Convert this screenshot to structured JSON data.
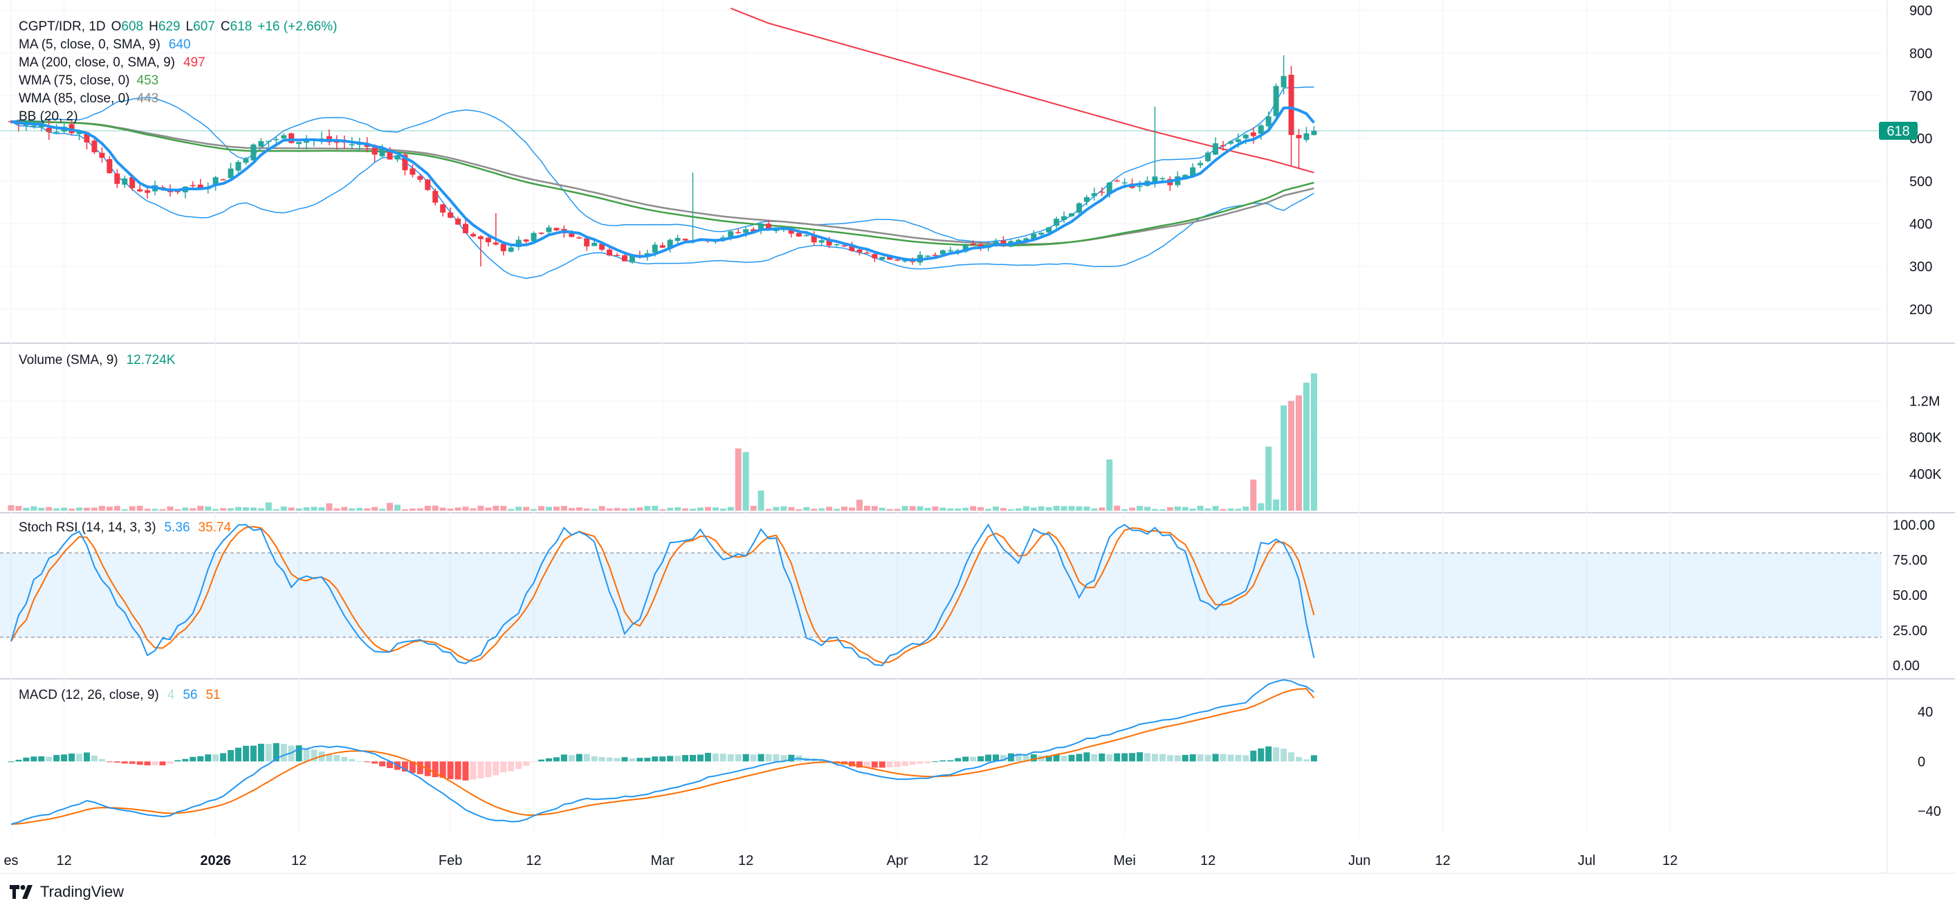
{
  "brand": {
    "name": "TradingView",
    "logo_icon": "tradingview-logo-icon"
  },
  "colors": {
    "up": "#26a69a",
    "up_vol": "#86dccf",
    "down": "#f23645",
    "down_vol": "#f7a1ab",
    "ma5": "#2196f3",
    "ma200": "#f23645",
    "wma75": "#43a047",
    "wma85": "#8d8d8d",
    "bb": "#2196f3",
    "stoch_k": "#2196f3",
    "stoch_d": "#ff6d00",
    "macd": "#2196f3",
    "signal": "#ff6d00",
    "hist_up_strong": "#26a69a",
    "hist_up_weak": "#b2dfdb",
    "hist_dn_strong": "#ff5252",
    "hist_dn_weak": "#ffcdd2",
    "label_green": "#089981",
    "label_blue": "#2196f3",
    "label_red": "#f23645",
    "label_orange": "#ff6d00",
    "label_gray": "#8d8d8d"
  },
  "legend": {
    "symbol": "CGPT/IDR, 1D",
    "o_label": "O",
    "o": "608",
    "h_label": "H",
    "h": "629",
    "l_label": "L",
    "l": "607",
    "c_label": "C",
    "c": "618",
    "change": "+16 (+2.66%)",
    "ma5": "MA (5, close, 0, SMA, 9)",
    "ma5_val": "640",
    "ma200": "MA (200, close, 0, SMA, 9)",
    "ma200_val": "497",
    "wma75": "WMA (75, close, 0)",
    "wma75_val": "453",
    "wma85": "WMA (85, close, 0)",
    "wma85_val": "443",
    "bb": "BB (20, 2)"
  },
  "price_badge": "618",
  "volume_legend": {
    "name": "Volume (SMA, 9)",
    "value": "12.724K"
  },
  "stoch_legend": {
    "name": "Stoch RSI (14, 14, 3, 3)",
    "k": "5.36",
    "d": "35.74"
  },
  "macd_legend": {
    "name": "MACD (12, 26, close, 9)",
    "hist": "4",
    "macd": "56",
    "signal": "51"
  },
  "chart_data": {
    "type": "candlestick",
    "symbol": "CGPT/IDR",
    "timeframe": "1D",
    "last": {
      "open": 608,
      "high": 629,
      "low": 607,
      "close": 618,
      "change": 16,
      "change_pct": 2.66
    },
    "x_ticks": [
      {
        "label": "es",
        "day": 0
      },
      {
        "label": "12",
        "day": 7
      },
      {
        "label": "2026",
        "day": 27,
        "bold": true
      },
      {
        "label": "12",
        "day": 38
      },
      {
        "label": "Feb",
        "day": 58
      },
      {
        "label": "12",
        "day": 69
      },
      {
        "label": "Mar",
        "day": 86
      },
      {
        "label": "12",
        "day": 97
      },
      {
        "label": "Apr",
        "day": 117
      },
      {
        "label": "12",
        "day": 128
      },
      {
        "label": "Mei",
        "day": 147
      },
      {
        "label": "12",
        "day": 158
      },
      {
        "label": "Jun",
        "day": 178
      },
      {
        "label": "12",
        "day": 189
      },
      {
        "label": "Jul",
        "day": 208
      },
      {
        "label": "12",
        "day": 219
      }
    ],
    "x_range": [
      0,
      234
    ],
    "panes": {
      "price": {
        "y_ticks": [
          900,
          800,
          700,
          600,
          500,
          400,
          300,
          200
        ],
        "ylim": [
          125,
          905
        ]
      },
      "volume": {
        "y_ticks": [
          {
            "v": 1200000,
            "label": "1.2M"
          },
          {
            "v": 800000,
            "label": "800K"
          },
          {
            "v": 400000,
            "label": "400K"
          }
        ],
        "ylim": [
          0,
          1800000
        ]
      },
      "stoch": {
        "y_ticks": [
          "100.00",
          "75.00",
          "50.00",
          "25.00",
          "0.00"
        ],
        "ylim": [
          -8,
          108
        ],
        "band": [
          20,
          80
        ]
      },
      "macd": {
        "y_ticks": [
          40,
          0,
          -40
        ],
        "ylim": [
          -60,
          66
        ]
      }
    },
    "price_knots": [
      [
        0,
        640
      ],
      [
        3,
        625
      ],
      [
        5,
        625
      ],
      [
        7,
        630
      ],
      [
        9,
        615
      ],
      [
        11,
        575
      ],
      [
        14,
        505
      ],
      [
        16,
        485
      ],
      [
        18,
        478
      ],
      [
        20,
        482
      ],
      [
        22,
        480
      ],
      [
        24,
        490
      ],
      [
        26,
        498
      ],
      [
        28,
        512
      ],
      [
        30,
        545
      ],
      [
        31,
        565
      ],
      [
        33,
        590
      ],
      [
        35,
        600
      ],
      [
        37,
        602
      ],
      [
        39,
        600
      ],
      [
        41,
        595
      ],
      [
        43,
        590
      ],
      [
        45,
        588
      ],
      [
        47,
        580
      ],
      [
        49,
        570
      ],
      [
        51,
        548
      ],
      [
        53,
        520
      ],
      [
        55,
        470
      ],
      [
        57,
        430
      ],
      [
        59,
        400
      ],
      [
        61,
        370
      ],
      [
        63,
        350
      ],
      [
        65,
        342
      ],
      [
        67,
        355
      ],
      [
        69,
        370
      ],
      [
        71,
        385
      ],
      [
        73,
        380
      ],
      [
        75,
        360
      ],
      [
        77,
        350
      ],
      [
        79,
        330
      ],
      [
        81,
        320
      ],
      [
        83,
        328
      ],
      [
        85,
        345
      ],
      [
        87,
        360
      ],
      [
        89,
        370
      ],
      [
        91,
        365
      ],
      [
        93,
        368
      ],
      [
        95,
        375
      ],
      [
        97,
        385
      ],
      [
        99,
        395
      ],
      [
        101,
        390
      ],
      [
        103,
        378
      ],
      [
        105,
        365
      ],
      [
        107,
        355
      ],
      [
        109,
        355
      ],
      [
        111,
        345
      ],
      [
        113,
        330
      ],
      [
        115,
        320
      ],
      [
        117,
        318
      ],
      [
        119,
        318
      ],
      [
        121,
        322
      ],
      [
        123,
        330
      ],
      [
        125,
        340
      ],
      [
        127,
        345
      ],
      [
        129,
        350
      ],
      [
        131,
        355
      ],
      [
        133,
        365
      ],
      [
        135,
        380
      ],
      [
        137,
        395
      ],
      [
        139,
        415
      ],
      [
        141,
        445
      ],
      [
        143,
        470
      ],
      [
        145,
        485
      ],
      [
        147,
        490
      ],
      [
        149,
        498
      ],
      [
        151,
        505
      ],
      [
        153,
        500
      ],
      [
        155,
        520
      ],
      [
        157,
        550
      ],
      [
        159,
        575
      ],
      [
        161,
        595
      ],
      [
        163,
        600
      ],
      [
        165,
        625
      ],
      [
        167,
        710
      ],
      [
        168,
        760
      ],
      [
        169,
        600
      ],
      [
        170,
        590
      ],
      [
        171,
        610
      ],
      [
        172,
        618
      ]
    ],
    "ma200_knots": [
      [
        95,
        905
      ],
      [
        100,
        870
      ],
      [
        110,
        820
      ],
      [
        120,
        770
      ],
      [
        130,
        720
      ],
      [
        140,
        670
      ],
      [
        150,
        620
      ],
      [
        160,
        575
      ],
      [
        166,
        550
      ],
      [
        172,
        520
      ],
      [
        178,
        505
      ],
      [
        184,
        497
      ]
    ],
    "volume_spikes": [
      [
        0,
        60000
      ],
      [
        34,
        90000
      ],
      [
        42,
        80000
      ],
      [
        44,
        40000
      ],
      [
        50,
        85000
      ],
      [
        51,
        65000
      ],
      [
        56,
        55000
      ],
      [
        96,
        680000
      ],
      [
        97,
        640000
      ],
      [
        99,
        220000
      ],
      [
        112,
        120000
      ],
      [
        145,
        560000
      ],
      [
        163,
        45000
      ],
      [
        164,
        340000
      ],
      [
        166,
        700000
      ],
      [
        168,
        1150000
      ],
      [
        169,
        1200000
      ],
      [
        170,
        1260000
      ],
      [
        171,
        1400000
      ],
      [
        172,
        1500000
      ]
    ],
    "stoch_knots": [
      [
        0,
        20
      ],
      [
        3,
        60
      ],
      [
        6,
        80
      ],
      [
        9,
        95
      ],
      [
        12,
        60
      ],
      [
        15,
        35
      ],
      [
        18,
        10
      ],
      [
        21,
        20
      ],
      [
        24,
        40
      ],
      [
        27,
        80
      ],
      [
        29,
        95
      ],
      [
        31,
        100
      ],
      [
        33,
        95
      ],
      [
        35,
        70
      ],
      [
        37,
        58
      ],
      [
        39,
        62
      ],
      [
        41,
        65
      ],
      [
        43,
        45
      ],
      [
        45,
        25
      ],
      [
        47,
        15
      ],
      [
        49,
        10
      ],
      [
        51,
        15
      ],
      [
        53,
        15
      ],
      [
        55,
        18
      ],
      [
        57,
        12
      ],
      [
        59,
        5
      ],
      [
        61,
        3
      ],
      [
        63,
        15
      ],
      [
        65,
        30
      ],
      [
        67,
        40
      ],
      [
        69,
        60
      ],
      [
        71,
        80
      ],
      [
        73,
        95
      ],
      [
        75,
        95
      ],
      [
        77,
        85
      ],
      [
        79,
        55
      ],
      [
        81,
        20
      ],
      [
        83,
        35
      ],
      [
        85,
        65
      ],
      [
        87,
        85
      ],
      [
        89,
        88
      ],
      [
        91,
        95
      ],
      [
        93,
        80
      ],
      [
        95,
        75
      ],
      [
        97,
        80
      ],
      [
        99,
        95
      ],
      [
        101,
        88
      ],
      [
        103,
        55
      ],
      [
        105,
        20
      ],
      [
        107,
        15
      ],
      [
        109,
        20
      ],
      [
        111,
        10
      ],
      [
        113,
        5
      ],
      [
        115,
        2
      ],
      [
        117,
        8
      ],
      [
        119,
        15
      ],
      [
        121,
        20
      ],
      [
        123,
        35
      ],
      [
        125,
        60
      ],
      [
        127,
        85
      ],
      [
        129,
        98
      ],
      [
        131,
        85
      ],
      [
        133,
        75
      ],
      [
        135,
        98
      ],
      [
        137,
        95
      ],
      [
        139,
        70
      ],
      [
        141,
        50
      ],
      [
        143,
        60
      ],
      [
        145,
        90
      ],
      [
        147,
        100
      ],
      [
        149,
        95
      ],
      [
        151,
        95
      ],
      [
        153,
        90
      ],
      [
        155,
        80
      ],
      [
        157,
        45
      ],
      [
        159,
        40
      ],
      [
        161,
        50
      ],
      [
        163,
        55
      ],
      [
        165,
        85
      ],
      [
        167,
        92
      ],
      [
        168,
        88
      ],
      [
        170,
        60
      ],
      [
        171,
        30
      ],
      [
        172,
        10
      ]
    ],
    "macd_knots": [
      [
        0,
        -50
      ],
      [
        5,
        -42
      ],
      [
        10,
        -32
      ],
      [
        15,
        -40
      ],
      [
        20,
        -45
      ],
      [
        25,
        -35
      ],
      [
        28,
        -28
      ],
      [
        32,
        -10
      ],
      [
        35,
        2
      ],
      [
        38,
        10
      ],
      [
        41,
        12
      ],
      [
        44,
        12
      ],
      [
        47,
        8
      ],
      [
        50,
        0
      ],
      [
        53,
        -10
      ],
      [
        56,
        -22
      ],
      [
        59,
        -35
      ],
      [
        61,
        -42
      ],
      [
        64,
        -48
      ],
      [
        67,
        -48
      ],
      [
        70,
        -42
      ],
      [
        73,
        -35
      ],
      [
        76,
        -30
      ],
      [
        79,
        -30
      ],
      [
        82,
        -28
      ],
      [
        85,
        -25
      ],
      [
        88,
        -20
      ],
      [
        91,
        -15
      ],
      [
        94,
        -10
      ],
      [
        97,
        -6
      ],
      [
        100,
        -2
      ],
      [
        103,
        2
      ],
      [
        106,
        2
      ],
      [
        109,
        -2
      ],
      [
        112,
        -8
      ],
      [
        115,
        -12
      ],
      [
        118,
        -15
      ],
      [
        121,
        -14
      ],
      [
        124,
        -10
      ],
      [
        127,
        -5
      ],
      [
        130,
        0
      ],
      [
        133,
        5
      ],
      [
        136,
        8
      ],
      [
        139,
        12
      ],
      [
        142,
        18
      ],
      [
        145,
        22
      ],
      [
        148,
        28
      ],
      [
        151,
        32
      ],
      [
        154,
        35
      ],
      [
        157,
        40
      ],
      [
        160,
        44
      ],
      [
        163,
        48
      ],
      [
        166,
        62
      ],
      [
        168,
        66
      ],
      [
        170,
        62
      ],
      [
        172,
        58
      ]
    ]
  }
}
